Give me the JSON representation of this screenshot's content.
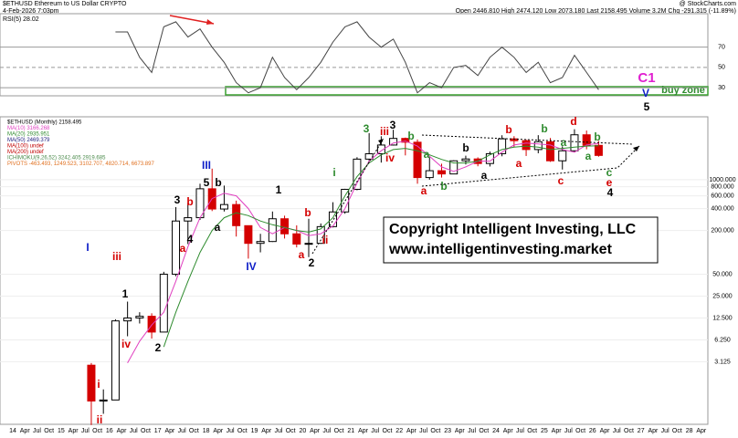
{
  "header": {
    "symbol": "$ETHUSD Ethereum to US Dollar CRYPTO",
    "date": "4-Feb-2026 7:03pm",
    "brand": "@ StockCharts.com",
    "quote": "Open 2446.810 High 2474.120 Low 2073.180 Last 2158.495 Volume 3.2M Chg -291.315 (-11.89%)"
  },
  "chart_data": [
    {
      "type": "line",
      "label": "RSI(5) 28.02",
      "color": "#444",
      "ylim": [
        22,
        103
      ],
      "yticks": [
        70,
        50,
        30
      ],
      "zone_label": "buy zone",
      "values": [
        null,
        null,
        85,
        85,
        60,
        45,
        90,
        95,
        80,
        88,
        70,
        55,
        35,
        25,
        30,
        60,
        40,
        28,
        40,
        55,
        75,
        90,
        95,
        80,
        70,
        78,
        55,
        25,
        35,
        30,
        50,
        52,
        42,
        60,
        70,
        60,
        45,
        55,
        35,
        40,
        62,
        45,
        28
      ]
    },
    {
      "type": "candlestick",
      "log_scale": true,
      "ylim": [
        0.43,
        7340
      ],
      "yticks": [
        {
          "value": 1000,
          "label": "1000.000"
        },
        {
          "value": 800,
          "label": "800.000"
        },
        {
          "value": 600,
          "label": "600.000"
        },
        {
          "value": 400,
          "label": "400.000"
        },
        {
          "value": 200,
          "label": "200.000"
        },
        {
          "value": 50,
          "label": "50.000"
        },
        {
          "value": 25,
          "label": "25.000"
        },
        {
          "value": 12.5,
          "label": "12.500"
        },
        {
          "value": 6.25,
          "label": "6.250"
        },
        {
          "value": 3.125,
          "label": "3.125"
        }
      ],
      "xticks": [
        "14",
        "Apr",
        "Jul",
        "Oct",
        "15",
        "Apr",
        "Jul",
        "Oct",
        "16",
        "Apr",
        "Jul",
        "Oct",
        "17",
        "Apr",
        "Jul",
        "Oct",
        "18",
        "Apr",
        "Jul",
        "Oct",
        "19",
        "Apr",
        "Jul",
        "Oct",
        "20",
        "Apr",
        "Jul",
        "Oct",
        "21",
        "Apr",
        "Jul",
        "Oct",
        "22",
        "Apr",
        "Jul",
        "Oct",
        "23",
        "Apr",
        "Jul",
        "Oct",
        "24",
        "Apr",
        "Jul",
        "Oct",
        "25",
        "Apr",
        "Jul",
        "Oct",
        "26",
        "Apr",
        "Jul",
        "Oct",
        "27",
        "Apr",
        "Jul",
        "Oct",
        "28",
        "Apr"
      ],
      "legend": [
        {
          "text": "$ETHUSD (Monthly) 2158.495",
          "color": "#000"
        },
        {
          "text": "MA(10) 3166.268",
          "color": "#e040c0"
        },
        {
          "text": "MA(20) 2935.951",
          "color": "#2e8b2e"
        },
        {
          "text": "MA(50) 2469.379",
          "color": "#202080"
        },
        {
          "text": "MA(100) undef",
          "color": "#c00000"
        },
        {
          "text": "MA(200) undef",
          "color": "#c00000"
        },
        {
          "text": "ICHIMOKU(9,26,52) 3242.405 2919.685",
          "color": "#4a8a4a"
        },
        {
          "text": "PIVOTS -463.493, 1249.523, 3102.707, 4820.714, 6673.897",
          "color": "#e07020"
        }
      ],
      "up_color": "#ffffff",
      "down_color": "#d40000",
      "ohlc": [
        [
          2.8,
          3,
          0.42,
          0.9
        ],
        [
          0.9,
          1.3,
          0.6,
          0.93
        ],
        [
          0.93,
          12,
          0.93,
          11.4
        ],
        [
          11.4,
          21,
          7,
          12.5
        ],
        [
          12.5,
          15,
          10.5,
          13.2
        ],
        [
          13.2,
          14.5,
          6.5,
          8
        ],
        [
          8,
          54,
          8,
          50
        ],
        [
          50,
          420,
          47,
          270
        ],
        [
          270,
          480,
          130,
          300
        ],
        [
          300,
          880,
          280,
          750
        ],
        [
          750,
          1420,
          370,
          395
        ],
        [
          395,
          830,
          365,
          455
        ],
        [
          455,
          515,
          165,
          233
        ],
        [
          233,
          235,
          82,
          133
        ],
        [
          133,
          180,
          100,
          141
        ],
        [
          141,
          365,
          139,
          290
        ],
        [
          290,
          320,
          155,
          180
        ],
        [
          180,
          235,
          117,
          130
        ],
        [
          130,
          290,
          86,
          133
        ],
        [
          133,
          250,
          131,
          226
        ],
        [
          226,
          490,
          220,
          360
        ],
        [
          360,
          750,
          340,
          737
        ],
        [
          737,
          2040,
          715,
          1920
        ],
        [
          1920,
          4380,
          1700,
          2275
        ],
        [
          2275,
          3960,
          1720,
          3000
        ],
        [
          3000,
          4870,
          2950,
          3700
        ],
        [
          3700,
          3800,
          2160,
          3280
        ],
        [
          3280,
          3580,
          880,
          1070
        ],
        [
          1070,
          2030,
          1000,
          1330
        ],
        [
          1330,
          1660,
          1070,
          1200
        ],
        [
          1200,
          1850,
          1190,
          1820
        ],
        [
          1820,
          2140,
          1620,
          1930
        ],
        [
          1930,
          2030,
          1530,
          1670
        ],
        [
          1670,
          2440,
          1520,
          2280
        ],
        [
          2280,
          4090,
          2100,
          3650
        ],
        [
          3650,
          3970,
          2810,
          3440
        ],
        [
          3440,
          3560,
          2120,
          2600
        ],
        [
          2600,
          4100,
          2310,
          3330
        ],
        [
          3330,
          3750,
          1760,
          1820
        ],
        [
          1820,
          2880,
          1380,
          2500
        ],
        [
          2500,
          4950,
          2370,
          4150
        ],
        [
          4150,
          4750,
          2620,
          2970
        ],
        [
          2970,
          3400,
          2073,
          2158.495
        ]
      ],
      "series": [
        {
          "name": "MA(10)",
          "color": "#e040c0",
          "values": [
            null,
            null,
            null,
            3,
            6,
            10,
            15,
            40,
            120,
            300,
            550,
            650,
            600,
            400,
            220,
            180,
            220,
            200,
            170,
            180,
            230,
            400,
            900,
            1800,
            2500,
            3200,
            3400,
            2900,
            2100,
            1500,
            1300,
            1500,
            1800,
            1800,
            2400,
            3000,
            3200,
            3100,
            3000,
            2600,
            2400,
            3000,
            3166
          ]
        },
        {
          "name": "MA(20)",
          "color": "#2e8b2e",
          "values": [
            null,
            null,
            null,
            null,
            null,
            null,
            5,
            15,
            40,
            100,
            200,
            300,
            350,
            320,
            270,
            240,
            220,
            200,
            190,
            210,
            300,
            600,
            1100,
            1700,
            2200,
            2600,
            2700,
            2500,
            2200,
            1900,
            1700,
            1700,
            1800,
            2200,
            2600,
            2800,
            2900,
            2800,
            2600,
            2700,
            2800,
            2900,
            2935
          ]
        }
      ],
      "annotations": [
        "I",
        "i",
        "ii",
        "iii",
        "iv",
        "1",
        "2",
        "III",
        "5",
        "3",
        "4",
        "b",
        "a",
        "a",
        "b",
        "IV",
        "1",
        "b",
        "a",
        "2",
        "ii",
        "i",
        "3",
        "3",
        "iii",
        "iv",
        "a",
        "b",
        "a",
        "b",
        "a",
        "b",
        "b",
        "b",
        "d",
        "a",
        "c",
        "a",
        "b",
        "a",
        "c",
        "e",
        "4",
        "C1",
        "V",
        "5"
      ],
      "copyright": [
        "Copyright Intelligent Investing, LLC",
        "www.intelligentinvesting.market"
      ]
    }
  ]
}
